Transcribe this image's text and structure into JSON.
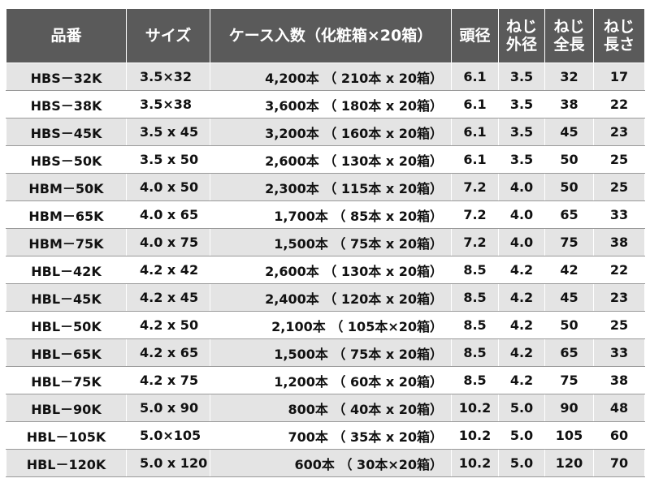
{
  "headers": {
    "code": "品番",
    "size": "サイズ",
    "case": "ケース入数（化粧箱×20箱）",
    "head": "頭径",
    "outer_line1": "ねじ",
    "outer_line2": "外径",
    "total_line1": "ねじ",
    "total_line2": "全長",
    "thread_line1": "ねじ",
    "thread_line2": "長さ"
  },
  "rows": [
    {
      "code": "HBS－32K",
      "size": "3.5×32",
      "case": "4,200本 （ 210本 x 20箱）",
      "head": "6.1",
      "outer": "3.5",
      "total": "32",
      "thread": "17"
    },
    {
      "code": "HBS－38K",
      "size": "3.5×38",
      "case": "3,600本 （ 180本 x 20箱）",
      "head": "6.1",
      "outer": "3.5",
      "total": "38",
      "thread": "22"
    },
    {
      "code": "HBS－45K",
      "size": "3.5 x 45",
      "case": "3,200本 （ 160本 x 20箱）",
      "head": "6.1",
      "outer": "3.5",
      "total": "45",
      "thread": "23"
    },
    {
      "code": "HBS－50K",
      "size": "3.5 x 50",
      "case": "2,600本 （ 130本 x 20箱）",
      "head": "6.1",
      "outer": "3.5",
      "total": "50",
      "thread": "25"
    },
    {
      "code": "HBM－50K",
      "size": "4.0 x 50",
      "case": "2,300本 （ 115本 x 20箱）",
      "head": "7.2",
      "outer": "4.0",
      "total": "50",
      "thread": "25"
    },
    {
      "code": "HBM－65K",
      "size": "4.0 x 65",
      "case": "1,700本 （ 85本 x 20箱）",
      "head": "7.2",
      "outer": "4.0",
      "total": "65",
      "thread": "33"
    },
    {
      "code": "HBM－75K",
      "size": "4.0 x 75",
      "case": "1,500本 （ 75本 x 20箱）",
      "head": "7.2",
      "outer": "4.0",
      "total": "75",
      "thread": "38"
    },
    {
      "code": "HBL－42K",
      "size": "4.2 x 42",
      "case": "2,600本 （ 130本 x 20箱）",
      "head": "8.5",
      "outer": "4.2",
      "total": "42",
      "thread": "22"
    },
    {
      "code": "HBL－45K",
      "size": "4.2 x 45",
      "case": "2,400本 （ 120本 x 20箱）",
      "head": "8.5",
      "outer": "4.2",
      "total": "45",
      "thread": "23"
    },
    {
      "code": "HBL－50K",
      "size": "4.2 x 50",
      "case": "2,100本 （ 105本×20箱）",
      "head": "8.5",
      "outer": "4.2",
      "total": "50",
      "thread": "25"
    },
    {
      "code": "HBL－65K",
      "size": "4.2 x 65",
      "case": "1,500本 （ 75本 x 20箱）",
      "head": "8.5",
      "outer": "4.2",
      "total": "65",
      "thread": "33"
    },
    {
      "code": "HBL－75K",
      "size": "4.2 x 75",
      "case": "1,200本 （ 60本 x 20箱）",
      "head": "8.5",
      "outer": "4.2",
      "total": "75",
      "thread": "38"
    },
    {
      "code": "HBL－90K",
      "size": "5.0 x 90",
      "case": "800本 （ 40本 x 20箱）",
      "head": "10.2",
      "outer": "5.0",
      "total": "90",
      "thread": "48"
    },
    {
      "code": "HBL－105K",
      "size": "5.0×105",
      "case": "700本 （ 35本 x 20箱）",
      "head": "10.2",
      "outer": "5.0",
      "total": "105",
      "thread": "60"
    },
    {
      "code": "HBL－120K",
      "size": "5.0 x 120",
      "case": "600本 （ 30本×20箱）",
      "head": "10.2",
      "outer": "5.0",
      "total": "120",
      "thread": "70"
    }
  ]
}
